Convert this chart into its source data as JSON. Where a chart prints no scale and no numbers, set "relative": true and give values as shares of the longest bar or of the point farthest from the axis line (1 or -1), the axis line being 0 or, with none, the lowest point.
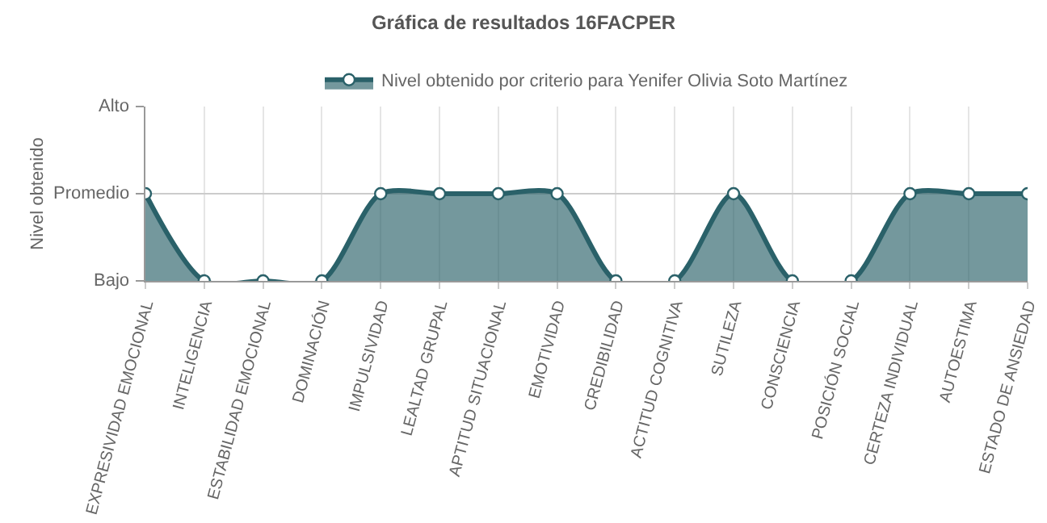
{
  "chart_data": {
    "type": "area",
    "title": "Gráfica de resultados 16FACPER",
    "ylabel": "Nivel obtenido",
    "categories": [
      "EXPRESIVIDAD EMOCIONAL",
      "INTELIGENCIA",
      "ESTABILIDAD EMOCIONAL",
      "DOMINACIÓN",
      "IMPULSIVIDAD",
      "LEALTAD GRUPAL",
      "APTITUD SITUACIONAL",
      "EMOTIVIDAD",
      "CREDIBILIDAD",
      "ACTITUD COGNITIVA",
      "SUTILEZA",
      "CONSCIENCIA",
      "POSICIÓN SOCIAL",
      "CERTEZA INDIVIDUAL",
      "AUTOESTIMA",
      "ESTADO DE ANSIEDAD"
    ],
    "series": [
      {
        "name": "Nivel obtenido por criterio para Yenifer Olivia Soto Martínez",
        "color": "#2a6169",
        "values": [
          1,
          0,
          0,
          0,
          1,
          1,
          1,
          1,
          0,
          0,
          1,
          0,
          0,
          1,
          1,
          1
        ]
      }
    ],
    "relative": true,
    "annotations": [
      "Alto",
      "Promedio",
      "Bajo"
    ],
    "grid": true,
    "legend": "top",
    "marker": "circle"
  }
}
